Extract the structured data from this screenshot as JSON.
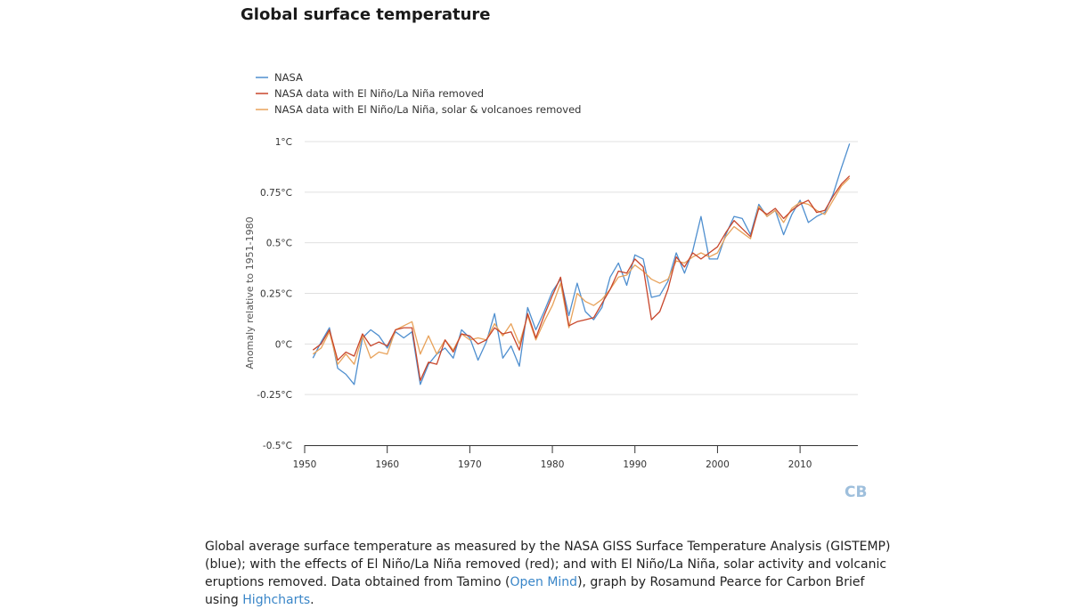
{
  "header": {
    "title": "Global surface temperature"
  },
  "logo": {
    "text": "CB"
  },
  "caption": {
    "part1": "Global average surface temperature as measured by the NASA GISS Surface Temperature Analysis (GISTEMP) (blue); with the effects of El Niño/La Niña removed (red); and with El Niño/La Niña, solar activity and volcanic eruptions removed. Data obtained from Tamino (",
    "link1": "Open Mind",
    "part2": "), graph by Rosamund Pearce for Carbon Brief using ",
    "link2": "Highcharts",
    "part3": "."
  },
  "colors": {
    "nasa": "#4f8fcf",
    "enso": "#c8462b",
    "all": "#e8a25a",
    "grid": "#e0e0e0"
  },
  "chart_data": {
    "type": "line",
    "ylabel": "Anomaly relative to 1951-1980",
    "ylim": [
      -0.5,
      1.0
    ],
    "xlim": [
      1950,
      2017
    ],
    "x_ticks": [
      1950,
      1960,
      1970,
      1980,
      1990,
      2000,
      2010
    ],
    "x_tick_labels": [
      "1950",
      "1960",
      "1970",
      "1980",
      "1990",
      "2000",
      "2010"
    ],
    "y_ticks": [
      -0.5,
      -0.25,
      0,
      0.25,
      0.5,
      0.75,
      1.0
    ],
    "y_tick_labels": [
      "-0.5°C",
      "-0.25°C",
      "0°C",
      "0.25°C",
      "0.5°C",
      "0.75°C",
      "1°C"
    ],
    "legend_position": "top-left",
    "x": [
      1951,
      1952,
      1953,
      1954,
      1955,
      1956,
      1957,
      1958,
      1959,
      1960,
      1961,
      1962,
      1963,
      1964,
      1965,
      1966,
      1967,
      1968,
      1969,
      1970,
      1971,
      1972,
      1973,
      1974,
      1975,
      1976,
      1977,
      1978,
      1979,
      1980,
      1981,
      1982,
      1983,
      1984,
      1985,
      1986,
      1987,
      1988,
      1989,
      1990,
      1991,
      1992,
      1993,
      1994,
      1995,
      1996,
      1997,
      1998,
      1999,
      2000,
      2001,
      2002,
      2003,
      2004,
      2005,
      2006,
      2007,
      2008,
      2009,
      2010,
      2011,
      2012,
      2013,
      2014,
      2015,
      2016
    ],
    "series": [
      {
        "name": "NASA",
        "color": "#4f8fcf",
        "values": [
          -0.07,
          0.01,
          0.08,
          -0.12,
          -0.15,
          -0.2,
          0.03,
          0.07,
          0.04,
          -0.02,
          0.06,
          0.03,
          0.06,
          -0.2,
          -0.1,
          -0.05,
          -0.02,
          -0.07,
          0.07,
          0.03,
          -0.08,
          0.01,
          0.15,
          -0.07,
          -0.01,
          -0.11,
          0.18,
          0.07,
          0.16,
          0.26,
          0.32,
          0.14,
          0.3,
          0.16,
          0.12,
          0.18,
          0.33,
          0.4,
          0.29,
          0.44,
          0.42,
          0.23,
          0.24,
          0.31,
          0.45,
          0.35,
          0.46,
          0.63,
          0.42,
          0.42,
          0.54,
          0.63,
          0.62,
          0.54,
          0.69,
          0.63,
          0.66,
          0.54,
          0.64,
          0.71,
          0.6,
          0.63,
          0.65,
          0.74,
          0.87,
          0.99
        ]
      },
      {
        "name": "NASA data with El Niño/La Niña removed",
        "color": "#c8462b",
        "values": [
          -0.03,
          0.0,
          0.07,
          -0.08,
          -0.04,
          -0.06,
          0.05,
          -0.01,
          0.01,
          -0.01,
          0.07,
          0.08,
          0.08,
          -0.18,
          -0.09,
          -0.1,
          0.02,
          -0.04,
          0.05,
          0.04,
          0.0,
          0.02,
          0.08,
          0.05,
          0.06,
          -0.03,
          0.15,
          0.03,
          0.14,
          0.24,
          0.33,
          0.09,
          0.11,
          0.12,
          0.13,
          0.2,
          0.27,
          0.36,
          0.35,
          0.42,
          0.38,
          0.12,
          0.16,
          0.27,
          0.43,
          0.38,
          0.45,
          0.42,
          0.45,
          0.48,
          0.55,
          0.61,
          0.57,
          0.53,
          0.67,
          0.64,
          0.67,
          0.62,
          0.66,
          0.69,
          0.71,
          0.65,
          0.66,
          0.73,
          0.79,
          0.83
        ]
      },
      {
        "name": "NASA data with El Niño/La Niña, solar & volcanoes removed",
        "color": "#e8a25a",
        "values": [
          -0.05,
          -0.02,
          0.06,
          -0.1,
          -0.05,
          -0.1,
          0.04,
          -0.07,
          -0.04,
          -0.05,
          0.07,
          0.09,
          0.11,
          -0.05,
          0.04,
          -0.05,
          0.02,
          -0.03,
          0.05,
          0.02,
          0.03,
          0.02,
          0.1,
          0.04,
          0.1,
          0.0,
          0.14,
          0.02,
          0.11,
          0.19,
          0.3,
          0.08,
          0.25,
          0.21,
          0.19,
          0.22,
          0.27,
          0.33,
          0.34,
          0.39,
          0.36,
          0.32,
          0.3,
          0.32,
          0.41,
          0.4,
          0.43,
          0.45,
          0.43,
          0.45,
          0.53,
          0.58,
          0.55,
          0.52,
          0.68,
          0.63,
          0.66,
          0.6,
          0.67,
          0.7,
          0.69,
          0.66,
          0.64,
          0.71,
          0.78,
          0.82
        ]
      }
    ]
  }
}
